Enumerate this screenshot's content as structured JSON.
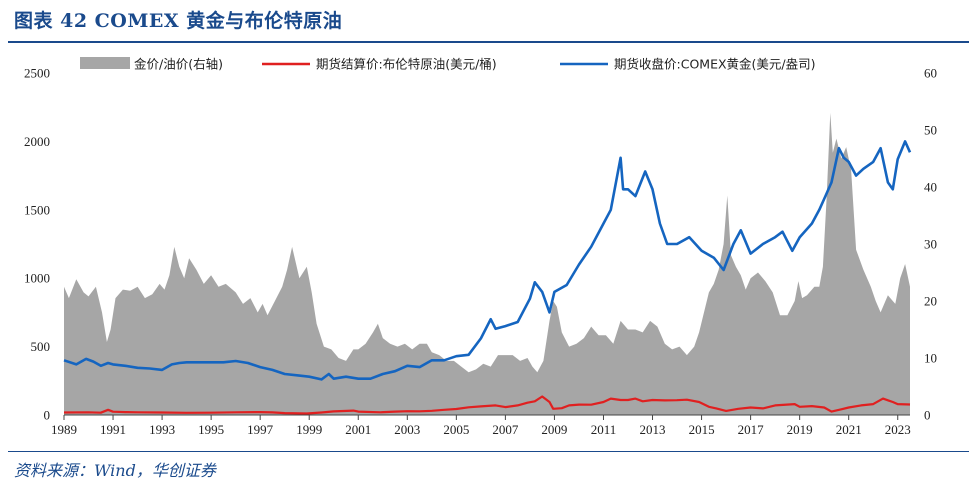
{
  "title": "图表 42  COMEX 黄金与布伦特原油",
  "source": "资料来源：Wind，华创证券",
  "colors": {
    "accent": "#1a4a8c",
    "gold": "#1565c0",
    "oil": "#e02020",
    "ratio": "#a6a6a6"
  },
  "chart_data": {
    "type": "area+line",
    "left_axis": {
      "ticks": [
        "0",
        "500",
        "1000",
        "1500",
        "2000",
        "2500"
      ],
      "ylim": [
        0,
        2500
      ]
    },
    "right_axis": {
      "ticks": [
        "0",
        "10",
        "20",
        "30",
        "40",
        "50",
        "60"
      ],
      "ylim": [
        0,
        60
      ]
    },
    "x_ticks": [
      "1989",
      "1991",
      "1993",
      "1995",
      "1997",
      "1999",
      "2001",
      "2003",
      "2005",
      "2007",
      "2009",
      "2011",
      "2013",
      "2015",
      "2017",
      "2019",
      "2021",
      "2023"
    ],
    "xlim": [
      1989,
      2023.5
    ],
    "legend_position": "top",
    "series": [
      {
        "name": "金价/油价(右轴)",
        "axis": "right",
        "style": "area",
        "color": "#a6a6a6",
        "x": [
          1989,
          1989.2,
          1989.5,
          1989.8,
          1990.0,
          1990.3,
          1990.55,
          1990.75,
          1990.9,
          1991.1,
          1991.4,
          1991.7,
          1992.0,
          1992.3,
          1992.6,
          1992.9,
          1993.1,
          1993.3,
          1993.5,
          1993.7,
          1993.9,
          1994.1,
          1994.4,
          1994.7,
          1995.0,
          1995.3,
          1995.6,
          1996.0,
          1996.3,
          1996.6,
          1996.9,
          1997.1,
          1997.3,
          1997.6,
          1997.9,
          1998.1,
          1998.3,
          1998.6,
          1998.9,
          1999.1,
          1999.3,
          1999.6,
          1999.9,
          2000.2,
          2000.5,
          2000.8,
          2001.0,
          2001.3,
          2001.6,
          2001.8,
          2002.0,
          2002.3,
          2002.6,
          2002.9,
          2003.2,
          2003.5,
          2003.8,
          2004.0,
          2004.3,
          2004.6,
          2004.9,
          2005.2,
          2005.5,
          2005.8,
          2006.1,
          2006.4,
          2006.7,
          2007.0,
          2007.3,
          2007.6,
          2007.9,
          2008.1,
          2008.3,
          2008.55,
          2008.8,
          2008.95,
          2009.1,
          2009.3,
          2009.6,
          2009.9,
          2010.2,
          2010.5,
          2010.8,
          2011.1,
          2011.4,
          2011.7,
          2012.0,
          2012.3,
          2012.6,
          2012.9,
          2013.2,
          2013.5,
          2013.8,
          2014.1,
          2014.4,
          2014.7,
          2014.9,
          2015.1,
          2015.3,
          2015.5,
          2015.7,
          2015.9,
          2016.05,
          2016.2,
          2016.4,
          2016.6,
          2016.8,
          2017.0,
          2017.3,
          2017.6,
          2017.9,
          2018.2,
          2018.5,
          2018.8,
          2018.95,
          2019.1,
          2019.3,
          2019.6,
          2019.8,
          2019.95,
          2020.1,
          2020.25,
          2020.35,
          2020.5,
          2020.7,
          2020.9,
          2021.1,
          2021.3,
          2021.6,
          2021.9,
          2022.1,
          2022.3,
          2022.6,
          2022.9,
          2023.1,
          2023.3,
          2023.5
        ],
        "values": [
          22.5,
          20.5,
          23.8,
          21.5,
          20.8,
          22.5,
          18.0,
          12.8,
          15.0,
          20.5,
          22.0,
          21.8,
          22.5,
          20.5,
          21.2,
          23.0,
          22.0,
          24.5,
          29.5,
          26.0,
          24.0,
          27.5,
          25.5,
          23.0,
          24.5,
          22.5,
          23.0,
          21.5,
          19.5,
          20.5,
          18.0,
          19.5,
          17.5,
          20.0,
          22.5,
          25.5,
          29.5,
          24.0,
          26.0,
          21.5,
          16.0,
          12.0,
          11.5,
          10.0,
          9.5,
          11.5,
          11.5,
          12.5,
          14.5,
          16.0,
          13.5,
          12.5,
          12.0,
          12.5,
          11.5,
          12.5,
          12.5,
          11.0,
          10.5,
          9.5,
          9.5,
          8.5,
          7.5,
          8.0,
          9.0,
          8.5,
          10.5,
          10.5,
          10.5,
          9.5,
          10.0,
          8.5,
          7.5,
          9.5,
          16.5,
          20.0,
          19.0,
          14.5,
          12.0,
          12.5,
          13.5,
          15.5,
          14.0,
          14.0,
          12.5,
          16.5,
          15.0,
          15.0,
          14.5,
          16.5,
          15.5,
          12.5,
          11.5,
          12.0,
          10.5,
          12.0,
          14.5,
          18.0,
          21.5,
          23.0,
          25.5,
          30.0,
          38.5,
          28.0,
          26.0,
          24.5,
          22.0,
          24.0,
          25.0,
          23.5,
          21.5,
          17.5,
          17.5,
          20.0,
          23.5,
          20.5,
          21.0,
          22.5,
          22.5,
          26.0,
          38.0,
          53.0,
          46.0,
          48.5,
          45.0,
          47.0,
          43.0,
          29.0,
          25.5,
          22.5,
          20.0,
          18.0,
          21.0,
          19.5,
          24.0,
          26.5,
          22.5
        ]
      },
      {
        "name": "期货结算价:布伦特原油(美元/桶)",
        "axis": "left",
        "style": "line",
        "color": "#e02020",
        "x": [
          1989,
          1990.0,
          1990.5,
          1990.8,
          1991.0,
          1991.5,
          1992,
          1993,
          1994,
          1995,
          1996,
          1997,
          1997.5,
          1998,
          1998.9,
          1999.5,
          2000,
          2000.8,
          2001,
          2001.9,
          2002.5,
          2003,
          2003.5,
          2004,
          2004.5,
          2005,
          2005.5,
          2006,
          2006.6,
          2007,
          2007.5,
          2007.9,
          2008.2,
          2008.5,
          2008.8,
          2008.95,
          2009.3,
          2009.6,
          2010,
          2010.5,
          2011,
          2011.3,
          2011.7,
          2012,
          2012.3,
          2012.6,
          2013,
          2013.5,
          2014,
          2014.4,
          2014.9,
          2015.3,
          2015.6,
          2016.0,
          2016.5,
          2017,
          2017.5,
          2018,
          2018.8,
          2019,
          2019.5,
          2020.0,
          2020.3,
          2020.7,
          2021,
          2021.5,
          2022.0,
          2022.4,
          2022.8,
          2023,
          2023.5
        ],
        "values": [
          18,
          20,
          17,
          38,
          24,
          21,
          20,
          18,
          16,
          17,
          20,
          21,
          19,
          14,
          11,
          18,
          26,
          32,
          25,
          20,
          25,
          28,
          27,
          31,
          38,
          44,
          56,
          63,
          70,
          58,
          70,
          90,
          100,
          135,
          95,
          45,
          50,
          70,
          76,
          75,
          95,
          120,
          110,
          110,
          120,
          100,
          110,
          107,
          108,
          112,
          95,
          60,
          48,
          30,
          45,
          55,
          48,
          70,
          80,
          60,
          65,
          55,
          25,
          42,
          55,
          70,
          80,
          120,
          95,
          80,
          77
        ]
      },
      {
        "name": "期货收盘价:COMEX黄金(美元/盎司)",
        "axis": "left",
        "style": "line",
        "color": "#1565c0",
        "x": [
          1989,
          1989.5,
          1989.9,
          1990.2,
          1990.5,
          1990.8,
          1991.0,
          1991.5,
          1992,
          1992.5,
          1993,
          1993.4,
          1993.7,
          1994,
          1994.5,
          1995,
          1995.5,
          1996.0,
          1996.5,
          1997.0,
          1997.5,
          1998,
          1998.5,
          1999.0,
          1999.5,
          1999.8,
          2000,
          2000.5,
          2001,
          2001.5,
          2002,
          2002.5,
          2003,
          2003.5,
          2004,
          2004.5,
          2005,
          2005.5,
          2006.0,
          2006.4,
          2006.6,
          2007,
          2007.5,
          2008.0,
          2008.2,
          2008.5,
          2008.8,
          2009,
          2009.5,
          2010,
          2010.5,
          2011,
          2011.3,
          2011.7,
          2011.8,
          2012,
          2012.3,
          2012.7,
          2013,
          2013.3,
          2013.6,
          2014,
          2014.5,
          2015,
          2015.5,
          2015.9,
          2016.3,
          2016.6,
          2017,
          2017.5,
          2018,
          2018.3,
          2018.7,
          2019,
          2019.5,
          2019.8,
          2020,
          2020.3,
          2020.6,
          2020.8,
          2021,
          2021.3,
          2021.6,
          2022,
          2022.3,
          2022.6,
          2022.8,
          2023,
          2023.3,
          2023.5
        ],
        "values": [
          400,
          370,
          410,
          390,
          360,
          380,
          370,
          360,
          345,
          340,
          330,
          370,
          380,
          385,
          385,
          385,
          385,
          395,
          380,
          350,
          330,
          300,
          290,
          280,
          260,
          300,
          265,
          280,
          265,
          265,
          300,
          320,
          360,
          350,
          400,
          400,
          430,
          440,
          560,
          700,
          630,
          650,
          680,
          850,
          970,
          900,
          750,
          900,
          950,
          1100,
          1230,
          1400,
          1500,
          1880,
          1650,
          1650,
          1600,
          1780,
          1650,
          1400,
          1250,
          1250,
          1300,
          1200,
          1150,
          1060,
          1250,
          1350,
          1180,
          1250,
          1300,
          1340,
          1200,
          1300,
          1400,
          1500,
          1580,
          1700,
          1950,
          1880,
          1850,
          1750,
          1800,
          1850,
          1950,
          1700,
          1650,
          1870,
          2000,
          1920
        ]
      }
    ]
  }
}
